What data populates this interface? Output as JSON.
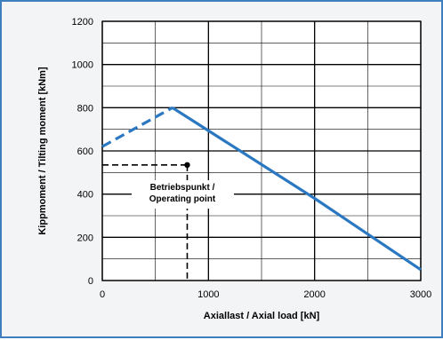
{
  "chart_data": {
    "type": "line",
    "title": "",
    "xlabel": "Axiallast / Axial load  [kN]",
    "ylabel": "Kippmoment / Tilting moment [kNm]",
    "xlim": [
      0,
      3000
    ],
    "ylim": [
      0,
      1200
    ],
    "xticks": [
      0,
      1000,
      2000,
      3000
    ],
    "yticks": [
      0,
      200,
      400,
      600,
      800,
      1000,
      1200
    ],
    "grid": true,
    "series": [
      {
        "name": "",
        "style": "dashed",
        "color": "#2b78c2",
        "points": [
          [
            0,
            620
          ],
          [
            660,
            800
          ]
        ]
      },
      {
        "name": "",
        "style": "solid",
        "color": "#2b78c2",
        "points": [
          [
            660,
            800
          ],
          [
            2000,
            380
          ],
          [
            3000,
            50
          ]
        ]
      }
    ],
    "annotation": {
      "line1": "Betriebspunkt /",
      "line2": "Operating point",
      "point": [
        800,
        535
      ]
    },
    "colors": {
      "series": "#2b78c2",
      "frame": "#3f7fc0",
      "background": "#f3f4f6",
      "plot_background": "#ffffff"
    }
  }
}
